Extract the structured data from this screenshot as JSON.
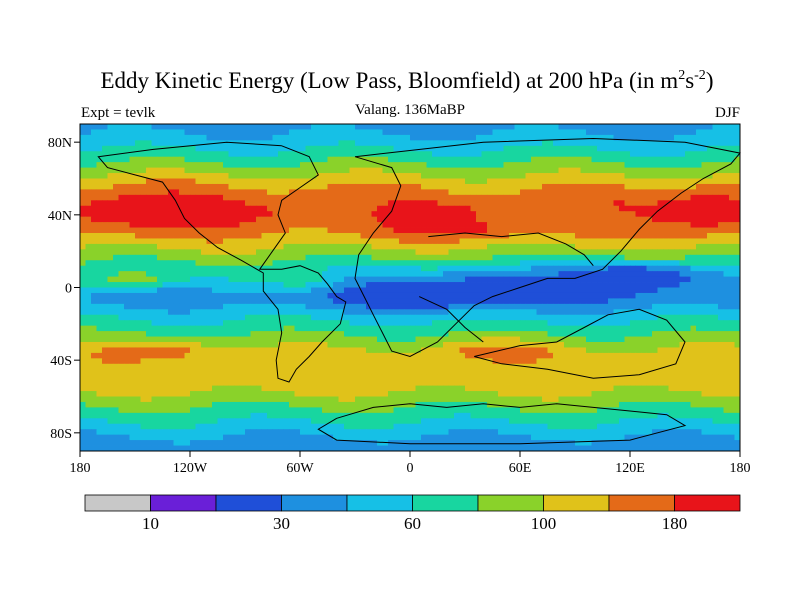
{
  "chart_data": {
    "type": "heatmap",
    "subtype": "filled-contour-map",
    "title": "Eddy Kinetic Energy (Low Pass, Bloomfield) at 200 hPa (in m",
    "title_unit_m_exp": "2",
    "title_unit_s": "s",
    "title_unit_s_exp": "-2",
    "title_close": ")",
    "left_label": "Expt = tevlk",
    "center_label": "Valang. 136MaBP",
    "right_label": "DJF",
    "xlabel": "",
    "ylabel": "",
    "xlim": [
      -180,
      180
    ],
    "ylim": [
      -90,
      90
    ],
    "x_ticks": [
      {
        "value": -180,
        "label": "180"
      },
      {
        "value": -120,
        "label": "120W"
      },
      {
        "value": -60,
        "label": "60W"
      },
      {
        "value": 0,
        "label": "0"
      },
      {
        "value": 60,
        "label": "60E"
      },
      {
        "value": 120,
        "label": "120E"
      },
      {
        "value": 180,
        "label": "180"
      }
    ],
    "y_ticks": [
      {
        "value": 80,
        "label": "80N"
      },
      {
        "value": 40,
        "label": "40N"
      },
      {
        "value": 0,
        "label": "0"
      },
      {
        "value": -40,
        "label": "40S"
      },
      {
        "value": -80,
        "label": "80S"
      }
    ],
    "colorbar": {
      "colors": [
        "#c8c8c8",
        "#6a1fd8",
        "#1f4fd8",
        "#1e90e0",
        "#16c0e6",
        "#18d6a0",
        "#8ad22a",
        "#e0c21a",
        "#e46a18",
        "#e8141a"
      ],
      "labels": [
        {
          "boundary": 1,
          "label": "10"
        },
        {
          "boundary": 3,
          "label": "30"
        },
        {
          "boundary": 5,
          "label": "60"
        },
        {
          "boundary": 7,
          "label": "100"
        },
        {
          "boundary": 9,
          "label": "180"
        }
      ]
    },
    "latitude_band_levels": {
      "lat": [
        90,
        80,
        72,
        65,
        58,
        50,
        42,
        34,
        26,
        18,
        10,
        2,
        -6,
        -14,
        -22,
        -30,
        -38,
        -46,
        -54,
        -62,
        -70,
        -78,
        -86,
        -90
      ],
      "level": [
        3,
        4,
        5,
        6,
        7,
        8,
        9,
        8,
        7,
        6,
        5,
        4,
        3,
        4,
        5,
        6,
        7,
        7,
        7,
        6,
        5,
        4,
        3,
        3
      ]
    },
    "anomalies": [
      {
        "lon": -140,
        "lat": 42,
        "dlon": 45,
        "dlat": 12,
        "level": 9
      },
      {
        "lon": 160,
        "lat": 42,
        "dlon": 30,
        "dlat": 12,
        "level": 9
      },
      {
        "lon": 20,
        "lat": 33,
        "dlon": 40,
        "dlat": 6,
        "level": 9
      },
      {
        "lon": -40,
        "lat": 45,
        "dlon": 30,
        "dlat": 10,
        "level": 8
      },
      {
        "lon": 90,
        "lat": 40,
        "dlon": 40,
        "dlat": 8,
        "level": 8
      },
      {
        "lon": 10,
        "lat": -4,
        "dlon": 45,
        "dlat": 7,
        "level": 1
      },
      {
        "lon": 120,
        "lat": 6,
        "dlon": 40,
        "dlat": 7,
        "level": 1
      },
      {
        "lon": 60,
        "lat": 0,
        "dlon": 100,
        "dlat": 10,
        "level": 2
      },
      {
        "lon": -140,
        "lat": -35,
        "dlon": 35,
        "dlat": 5,
        "level": 8
      },
      {
        "lon": 50,
        "lat": -35,
        "dlon": 35,
        "dlat": 5,
        "level": 8
      },
      {
        "lon": -150,
        "lat": 5,
        "dlon": 25,
        "dlat": 5,
        "level": 6
      },
      {
        "lon": -60,
        "lat": 5,
        "dlon": 20,
        "dlat": 6,
        "level": 5
      }
    ],
    "coastlines": [
      {
        "name": "north-america",
        "lonlat": [
          [
            -70,
            78
          ],
          [
            -55,
            72
          ],
          [
            -50,
            62
          ],
          [
            -60,
            55
          ],
          [
            -70,
            48
          ],
          [
            -72,
            40
          ],
          [
            -68,
            30
          ],
          [
            -75,
            20
          ],
          [
            -82,
            10
          ],
          [
            -70,
            10
          ],
          [
            -60,
            12
          ],
          [
            -50,
            8
          ],
          [
            -45,
            2
          ],
          [
            -40,
            -5
          ],
          [
            -35,
            -8
          ],
          [
            -38,
            -20
          ],
          [
            -48,
            -30
          ],
          [
            -55,
            -38
          ],
          [
            -62,
            -45
          ],
          [
            -66,
            -52
          ],
          [
            -72,
            -50
          ],
          [
            -73,
            -40
          ],
          [
            -70,
            -25
          ],
          [
            -72,
            -12
          ],
          [
            -80,
            -2
          ],
          [
            -80,
            8
          ],
          [
            -92,
            15
          ],
          [
            -105,
            22
          ],
          [
            -115,
            30
          ],
          [
            -123,
            38
          ],
          [
            -128,
            48
          ],
          [
            -135,
            58
          ],
          [
            -150,
            62
          ],
          [
            -165,
            66
          ],
          [
            -170,
            72
          ],
          [
            -140,
            76
          ],
          [
            -100,
            80
          ],
          [
            -70,
            78
          ]
        ]
      },
      {
        "name": "eurasia-africa",
        "lonlat": [
          [
            -30,
            72
          ],
          [
            -10,
            66
          ],
          [
            -5,
            56
          ],
          [
            -10,
            42
          ],
          [
            -20,
            30
          ],
          [
            -28,
            18
          ],
          [
            -30,
            5
          ],
          [
            -25,
            -5
          ],
          [
            -20,
            -15
          ],
          [
            -15,
            -25
          ],
          [
            -10,
            -35
          ],
          [
            0,
            -38
          ],
          [
            15,
            -30
          ],
          [
            25,
            -20
          ],
          [
            35,
            -10
          ],
          [
            45,
            -5
          ],
          [
            60,
            0
          ],
          [
            75,
            5
          ],
          [
            90,
            5
          ],
          [
            105,
            10
          ],
          [
            115,
            20
          ],
          [
            125,
            32
          ],
          [
            135,
            42
          ],
          [
            148,
            52
          ],
          [
            160,
            60
          ],
          [
            175,
            68
          ],
          [
            180,
            74
          ],
          [
            150,
            80
          ],
          [
            100,
            82
          ],
          [
            40,
            80
          ],
          [
            -30,
            72
          ]
        ]
      },
      {
        "name": "india-australia",
        "lonlat": [
          [
            35,
            -38
          ],
          [
            60,
            -32
          ],
          [
            80,
            -30
          ],
          [
            95,
            -22
          ],
          [
            108,
            -15
          ],
          [
            125,
            -12
          ],
          [
            140,
            -18
          ],
          [
            150,
            -30
          ],
          [
            145,
            -42
          ],
          [
            125,
            -48
          ],
          [
            100,
            -50
          ],
          [
            75,
            -45
          ],
          [
            50,
            -42
          ],
          [
            35,
            -38
          ]
        ]
      },
      {
        "name": "antarctica",
        "lonlat": [
          [
            -40,
            -72
          ],
          [
            -20,
            -66
          ],
          [
            0,
            -64
          ],
          [
            20,
            -66
          ],
          [
            40,
            -64
          ],
          [
            60,
            -66
          ],
          [
            80,
            -64
          ],
          [
            100,
            -66
          ],
          [
            120,
            -68
          ],
          [
            140,
            -70
          ],
          [
            150,
            -76
          ],
          [
            120,
            -84
          ],
          [
            60,
            -86
          ],
          [
            0,
            -86
          ],
          [
            -40,
            -84
          ],
          [
            -50,
            -78
          ],
          [
            -40,
            -72
          ]
        ]
      },
      {
        "name": "tethys-islands",
        "lonlat": [
          [
            10,
            28
          ],
          [
            30,
            30
          ],
          [
            50,
            28
          ],
          [
            70,
            30
          ],
          [
            85,
            24
          ],
          [
            95,
            18
          ],
          [
            100,
            12
          ]
        ]
      },
      {
        "name": "central-divide",
        "lonlat": [
          [
            5,
            -5
          ],
          [
            20,
            -12
          ],
          [
            30,
            -22
          ],
          [
            40,
            -30
          ]
        ]
      }
    ]
  }
}
